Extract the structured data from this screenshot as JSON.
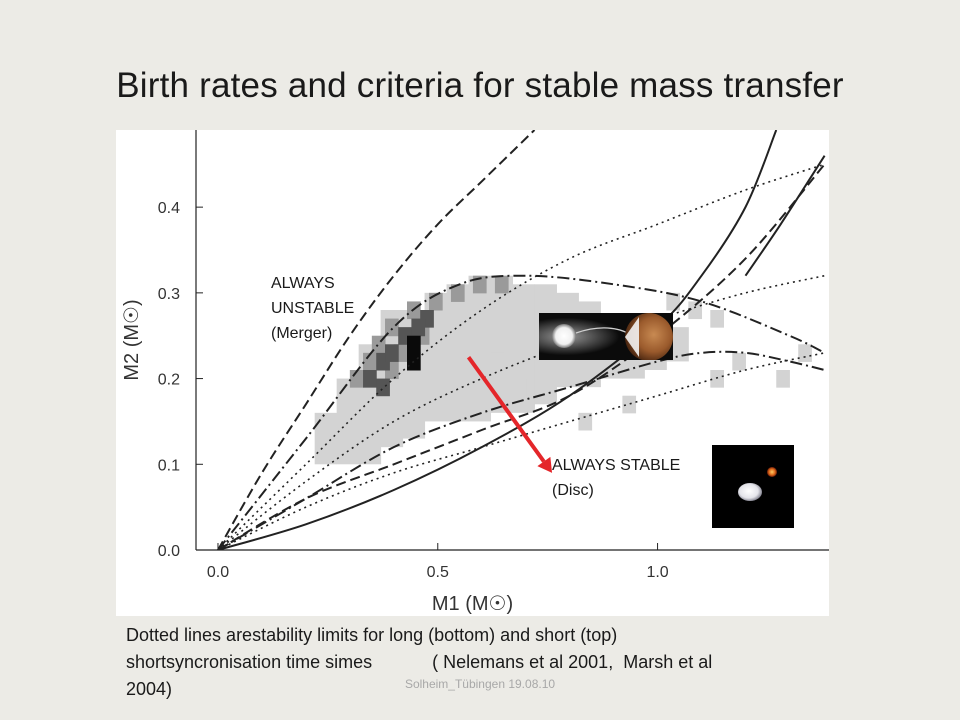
{
  "slide": {
    "title": "Birth rates and criteria for stable mass transfer",
    "caption_line1": "Dotted lines arestability limits for long (bottom) and short (top)",
    "caption_line2": "shortsyncronisation time simes            ( Nelemans et al 2001,  Marsh et al",
    "caption_line3": "2004)",
    "footer": "Solheim_Tübingen 19.08.10"
  },
  "chart_data": {
    "type": "line",
    "xlabel": "M1 (M☉)",
    "ylabel": "M2 (M☉)",
    "xlim": [
      -0.05,
      1.39
    ],
    "ylim": [
      0.0,
      0.49
    ],
    "x_ticks": [
      "0.0",
      "0.5",
      "1.0"
    ],
    "y_ticks": [
      "0.0",
      "0.1",
      "0.2",
      "0.3",
      "0.4"
    ],
    "grid": false,
    "series": [
      {
        "style": "solid",
        "points": [
          [
            0.0,
            0.0
          ],
          [
            0.2,
            0.03
          ],
          [
            0.4,
            0.07
          ],
          [
            0.6,
            0.12
          ],
          [
            0.8,
            0.18
          ],
          [
            1.0,
            0.26
          ],
          [
            1.1,
            0.32
          ],
          [
            1.2,
            0.4
          ],
          [
            1.27,
            0.49
          ]
        ]
      },
      {
        "style": "solid",
        "points": [
          [
            1.2,
            0.32
          ],
          [
            1.28,
            0.38
          ],
          [
            1.38,
            0.46
          ]
        ]
      },
      {
        "style": "dashed",
        "points": [
          [
            0.0,
            0.0
          ],
          [
            0.1,
            0.09
          ],
          [
            0.2,
            0.17
          ],
          [
            0.3,
            0.25
          ],
          [
            0.4,
            0.32
          ],
          [
            0.5,
            0.38
          ],
          [
            0.6,
            0.43
          ],
          [
            0.72,
            0.49
          ]
        ]
      },
      {
        "style": "dashed",
        "points": [
          [
            0.0,
            0.0
          ],
          [
            0.2,
            0.06
          ],
          [
            0.4,
            0.1
          ],
          [
            0.6,
            0.14
          ],
          [
            0.8,
            0.18
          ],
          [
            1.0,
            0.25
          ],
          [
            1.2,
            0.34
          ],
          [
            1.38,
            0.45
          ]
        ]
      },
      {
        "style": "dotted",
        "points": [
          [
            0.0,
            0.0
          ],
          [
            0.2,
            0.1
          ],
          [
            0.4,
            0.2
          ],
          [
            0.6,
            0.28
          ],
          [
            0.8,
            0.34
          ],
          [
            1.0,
            0.38
          ],
          [
            1.2,
            0.42
          ],
          [
            1.38,
            0.45
          ]
        ]
      },
      {
        "style": "dotted",
        "points": [
          [
            0.0,
            0.0
          ],
          [
            0.2,
            0.08
          ],
          [
            0.4,
            0.15
          ],
          [
            0.6,
            0.2
          ],
          [
            0.8,
            0.24
          ],
          [
            1.0,
            0.27
          ],
          [
            1.2,
            0.3
          ],
          [
            1.38,
            0.32
          ]
        ]
      },
      {
        "style": "dotted",
        "points": [
          [
            0.0,
            0.0
          ],
          [
            0.2,
            0.05
          ],
          [
            0.4,
            0.09
          ],
          [
            0.6,
            0.12
          ],
          [
            0.8,
            0.15
          ],
          [
            1.0,
            0.18
          ],
          [
            1.2,
            0.21
          ],
          [
            1.38,
            0.23
          ]
        ]
      },
      {
        "style": "dashdot",
        "points": [
          [
            0.0,
            0.0
          ],
          [
            0.2,
            0.13
          ],
          [
            0.4,
            0.26
          ],
          [
            0.55,
            0.31
          ],
          [
            0.7,
            0.32
          ],
          [
            0.9,
            0.31
          ],
          [
            1.1,
            0.29
          ],
          [
            1.3,
            0.25
          ],
          [
            1.38,
            0.23
          ]
        ]
      },
      {
        "style": "dashdot",
        "points": [
          [
            0.0,
            0.0
          ],
          [
            0.2,
            0.06
          ],
          [
            0.4,
            0.12
          ],
          [
            0.6,
            0.16
          ],
          [
            0.8,
            0.19
          ],
          [
            1.0,
            0.22
          ],
          [
            1.1,
            0.23
          ],
          [
            1.2,
            0.23
          ],
          [
            1.3,
            0.22
          ],
          [
            1.38,
            0.21
          ]
        ]
      }
    ],
    "density": {
      "light_columns": [
        [
          0.22,
          0.1,
          0.16
        ],
        [
          0.27,
          0.1,
          0.2
        ],
        [
          0.32,
          0.1,
          0.24
        ],
        [
          0.37,
          0.12,
          0.28
        ],
        [
          0.42,
          0.13,
          0.28
        ],
        [
          0.47,
          0.15,
          0.3
        ],
        [
          0.52,
          0.15,
          0.31
        ],
        [
          0.57,
          0.15,
          0.32
        ],
        [
          0.62,
          0.16,
          0.32
        ],
        [
          0.67,
          0.16,
          0.31
        ],
        [
          0.72,
          0.17,
          0.31
        ],
        [
          0.77,
          0.19,
          0.3
        ],
        [
          0.82,
          0.19,
          0.29
        ],
        [
          0.87,
          0.2,
          0.27
        ],
        [
          0.92,
          0.2,
          0.25
        ],
        [
          0.97,
          0.21,
          0.25
        ],
        [
          1.02,
          0.22,
          0.26
        ]
      ],
      "light_cells": [
        [
          0.62,
          0.21
        ],
        [
          0.67,
          0.18
        ],
        [
          0.72,
          0.23
        ],
        [
          0.92,
          0.16
        ],
        [
          1.12,
          0.19
        ],
        [
          1.12,
          0.26
        ],
        [
          1.17,
          0.21
        ],
        [
          1.27,
          0.19
        ],
        [
          1.32,
          0.22
        ],
        [
          1.02,
          0.28
        ],
        [
          1.07,
          0.27
        ],
        [
          0.82,
          0.14
        ]
      ],
      "mid_cells": [
        [
          0.3,
          0.19
        ],
        [
          0.33,
          0.21
        ],
        [
          0.35,
          0.23
        ],
        [
          0.38,
          0.25
        ],
        [
          0.43,
          0.27
        ],
        [
          0.48,
          0.28
        ],
        [
          0.53,
          0.29
        ],
        [
          0.58,
          0.3
        ],
        [
          0.63,
          0.3
        ],
        [
          0.4,
          0.22
        ],
        [
          0.45,
          0.24
        ],
        [
          0.38,
          0.2
        ]
      ],
      "dark_cells": [
        [
          0.33,
          0.19
        ],
        [
          0.36,
          0.21
        ],
        [
          0.38,
          0.22
        ],
        [
          0.41,
          0.24
        ],
        [
          0.46,
          0.26
        ],
        [
          0.44,
          0.25
        ],
        [
          0.36,
          0.18
        ]
      ],
      "black_cells": [
        [
          0.43,
          0.23
        ],
        [
          0.43,
          0.21
        ]
      ]
    },
    "arrow": {
      "from": [
        0.57,
        0.225
      ],
      "to": [
        0.76,
        0.09
      ],
      "color": "#e4262a"
    },
    "annotations": [
      {
        "label_line1": "ALWAYS",
        "label_line2": "UNSTABLE",
        "label_line3": "(Merger)"
      },
      {
        "label_line1": "ALWAYS STABLE",
        "label_line2": "(Disc)"
      }
    ]
  },
  "colors": {
    "background": "#ecebe6",
    "curve": "#222222",
    "density_light": "#d3d3d3",
    "density_mid": "#9a9a9a",
    "density_dark": "#555555",
    "density_black": "#0a0a0a",
    "arrow": "#e4262a"
  }
}
